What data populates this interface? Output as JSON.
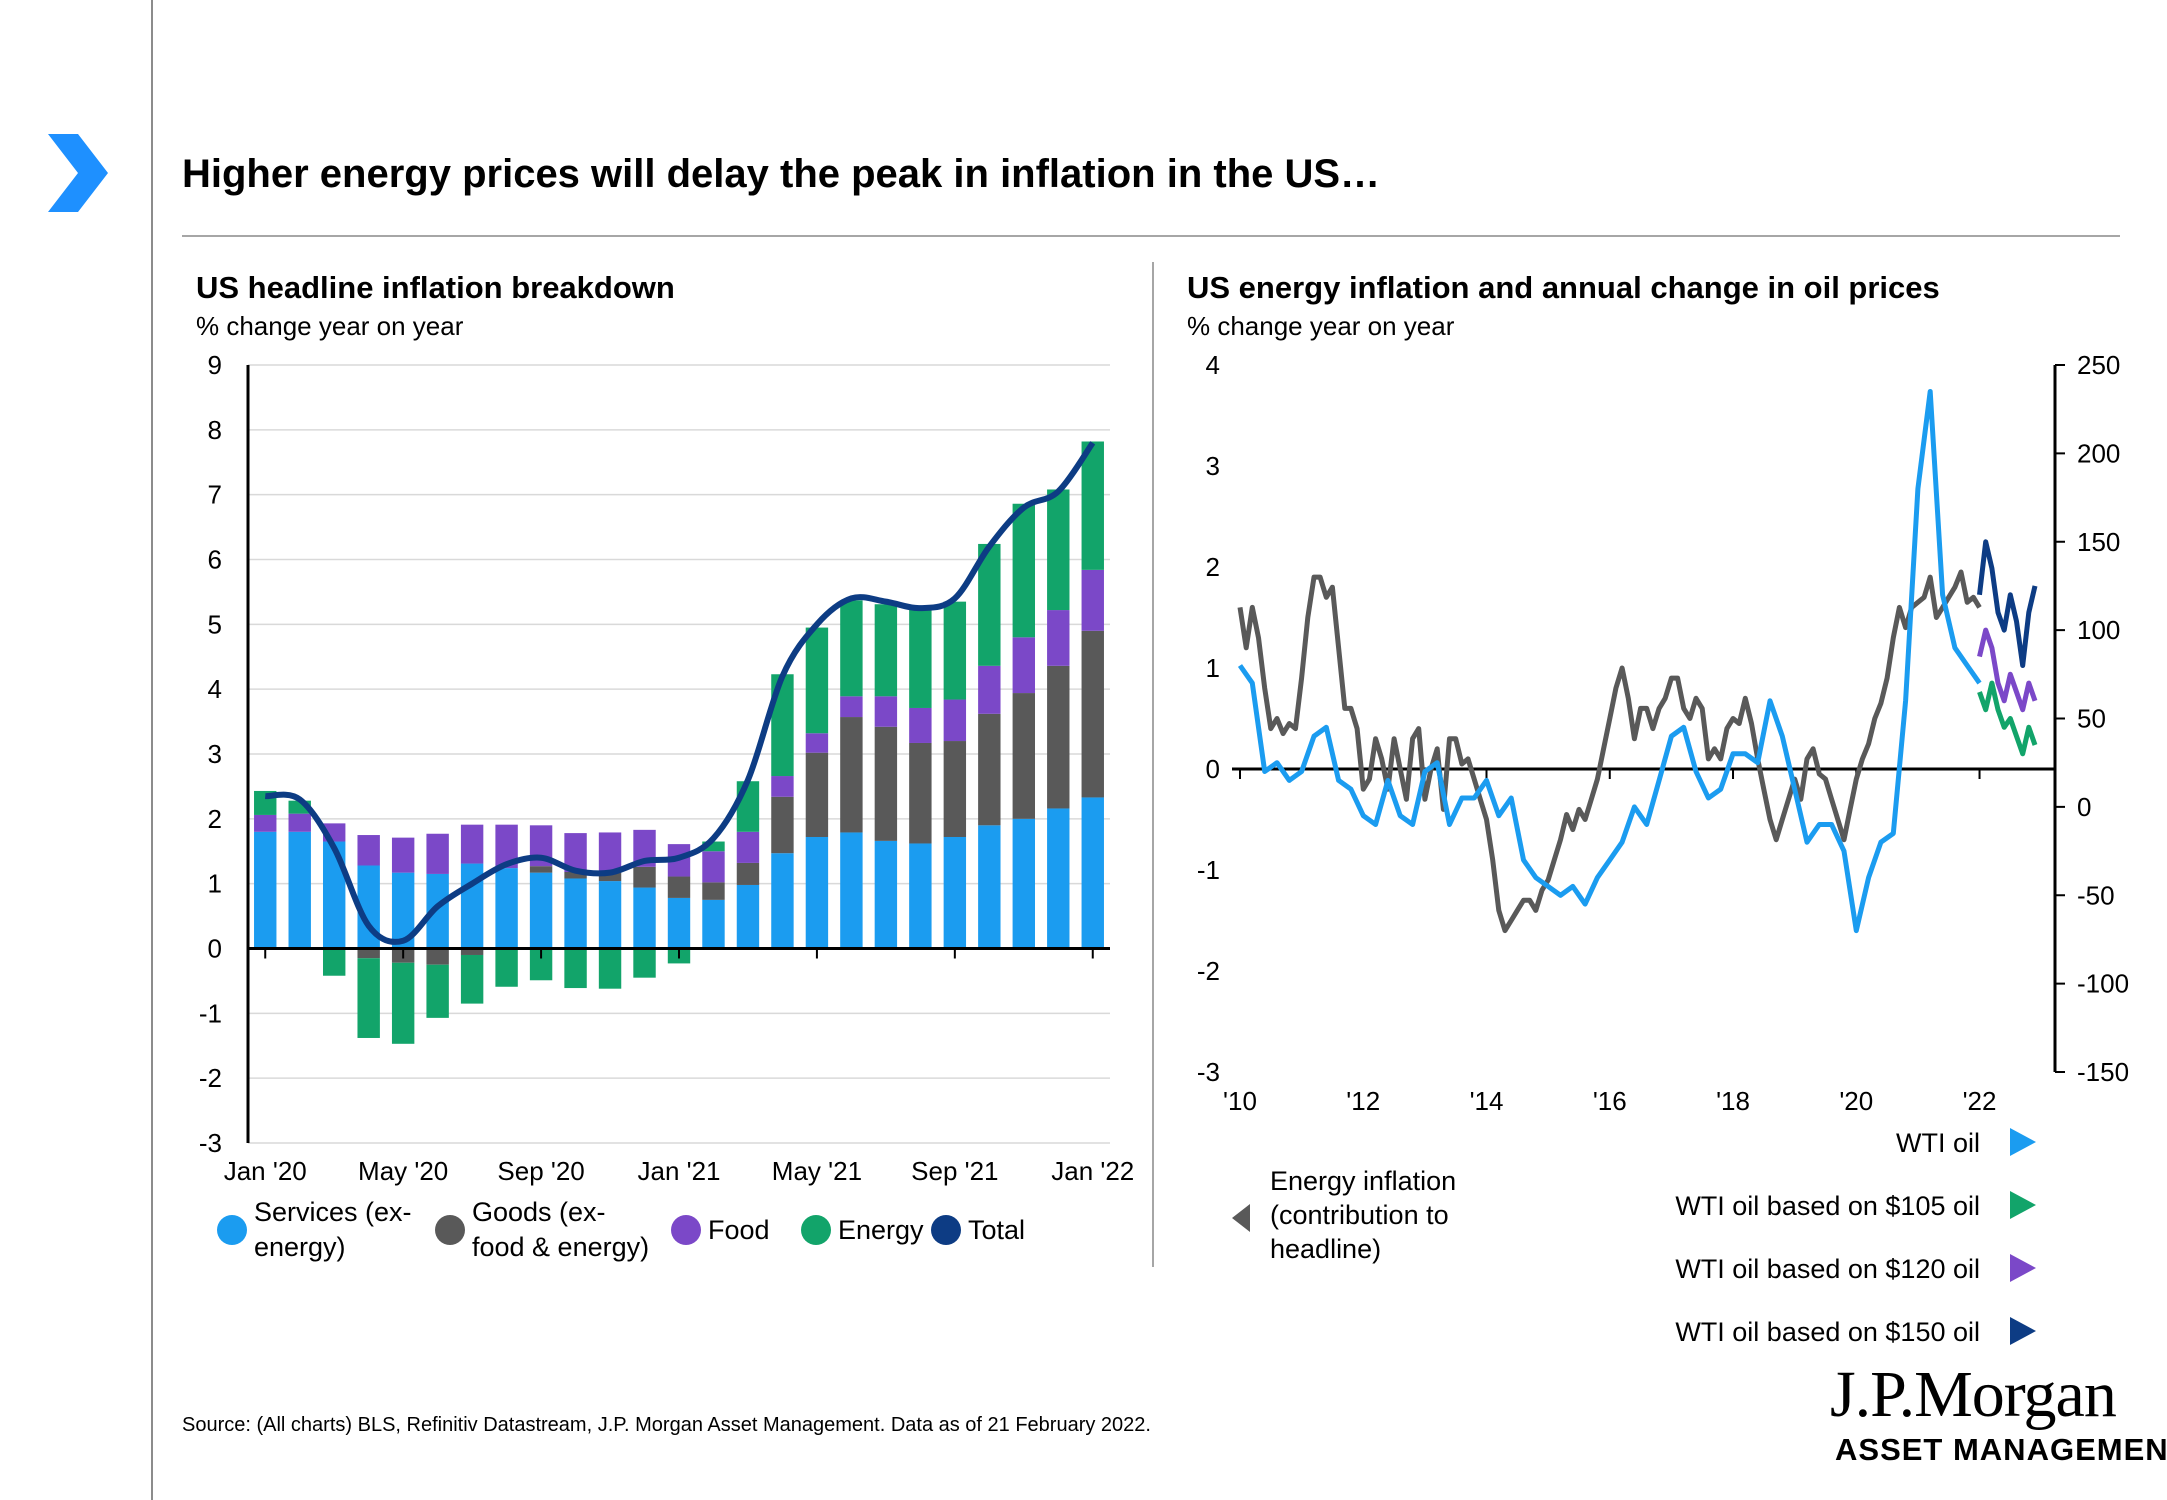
{
  "header": {
    "title": "Higher energy prices will delay the peak in inflation in the US…",
    "arrow_color": "#1e90ff"
  },
  "left_chart": {
    "title": "US headline inflation breakdown",
    "subtitle": "% change year on year"
  },
  "right_chart": {
    "title": "US energy inflation and annual change in oil prices",
    "subtitle": "% change year on year"
  },
  "source": "Source: (All charts) BLS, Refinitiv Datastream, J.P. Morgan Asset Management. Data as of 21 February 2022.",
  "logo": {
    "name": "J.P.Morgan",
    "sub": "ASSET MANAGEMENT"
  },
  "chart_data": [
    {
      "type": "bar",
      "stacked": true,
      "title": "US headline inflation breakdown",
      "ylabel": "% change year on year",
      "ylim": [
        -3,
        9
      ],
      "yticks": [
        -3,
        -2,
        -1,
        0,
        1,
        2,
        3,
        4,
        5,
        6,
        7,
        8,
        9
      ],
      "grid": true,
      "legend_position": "bottom",
      "categories": [
        "Jan '20",
        "Feb '20",
        "Mar '20",
        "Apr '20",
        "May '20",
        "Jun '20",
        "Jul '20",
        "Aug '20",
        "Sep '20",
        "Oct '20",
        "Nov '20",
        "Dec '20",
        "Jan '21",
        "Feb '21",
        "Mar '21",
        "Apr '21",
        "May '21",
        "Jun '21",
        "Jul '21",
        "Aug '21",
        "Sep '21",
        "Oct '21",
        "Nov '21",
        "Dec '21",
        "Jan '22"
      ],
      "xtick_labels": [
        "Jan '20",
        "May '20",
        "Sep '20",
        "Jan '21",
        "May '21",
        "Sep '21",
        "Jan '22"
      ],
      "series": [
        {
          "name": "Services (ex-energy)",
          "color": "#1b9cf0",
          "values": [
            1.8,
            1.8,
            1.65,
            1.28,
            1.17,
            1.15,
            1.31,
            1.24,
            1.17,
            1.08,
            1.04,
            0.94,
            0.78,
            0.75,
            0.98,
            1.47,
            1.72,
            1.79,
            1.66,
            1.62,
            1.72,
            1.9,
            2.0,
            2.16,
            2.33
          ]
        },
        {
          "name": "Goods (ex-food & energy)",
          "color": "#595959",
          "values": [
            0,
            0,
            0,
            -0.15,
            -0.22,
            -0.25,
            -0.1,
            -0.02,
            0.1,
            0.1,
            0.15,
            0.32,
            0.33,
            0.27,
            0.34,
            0.87,
            1.3,
            1.78,
            1.76,
            1.55,
            1.48,
            1.72,
            1.94,
            2.2,
            2.57
          ]
        },
        {
          "name": "Food",
          "color": "#7b48c8",
          "values": [
            0.26,
            0.28,
            0.28,
            0.47,
            0.54,
            0.62,
            0.6,
            0.67,
            0.63,
            0.6,
            0.6,
            0.57,
            0.5,
            0.48,
            0.48,
            0.32,
            0.3,
            0.32,
            0.47,
            0.54,
            0.64,
            0.74,
            0.86,
            0.86,
            0.94
          ]
        },
        {
          "name": "Energy",
          "color": "#12a46a",
          "values": [
            0.37,
            0.2,
            -0.42,
            -1.23,
            -1.25,
            -0.82,
            -0.75,
            -0.57,
            -0.49,
            -0.61,
            -0.62,
            -0.45,
            -0.23,
            0.15,
            0.78,
            1.57,
            1.63,
            1.48,
            1.42,
            1.57,
            1.51,
            1.88,
            2.06,
            1.86,
            1.98
          ]
        },
        {
          "name": "Total",
          "color": "#0d3c84",
          "type": "line",
          "values": [
            2.35,
            2.3,
            1.55,
            0.35,
            0.12,
            0.65,
            1.0,
            1.3,
            1.4,
            1.2,
            1.17,
            1.35,
            1.4,
            1.7,
            2.6,
            4.2,
            5.0,
            5.4,
            5.35,
            5.25,
            5.4,
            6.2,
            6.8,
            7.05,
            7.8
          ]
        }
      ]
    },
    {
      "type": "line",
      "title": "US energy inflation and annual change in oil prices",
      "ylabel": "% change year on year",
      "ylim": [
        -3,
        4
      ],
      "y2lim": [
        -150,
        250
      ],
      "yticks": [
        -3,
        -2,
        -1,
        0,
        1,
        2,
        3,
        4
      ],
      "y2ticks": [
        -150,
        -100,
        -50,
        0,
        50,
        100,
        150,
        200,
        250
      ],
      "xlim": [
        2010,
        2022.9
      ],
      "xtick_labels": [
        "'10",
        "'12",
        "'14",
        "'16",
        "'18",
        "'20",
        "'22"
      ],
      "legend_position": "bottom",
      "series": [
        {
          "name": "Energy inflation (contribution to headline)",
          "color": "#595959",
          "axis": "left",
          "x": [
            2010,
            2010.1,
            2010.2,
            2010.3,
            2010.4,
            2010.5,
            2010.6,
            2010.7,
            2010.8,
            2010.9,
            2011,
            2011.1,
            2011.2,
            2011.3,
            2011.4,
            2011.5,
            2011.6,
            2011.7,
            2011.8,
            2011.9,
            2012,
            2012.1,
            2012.2,
            2012.3,
            2012.4,
            2012.5,
            2012.6,
            2012.7,
            2012.8,
            2012.9,
            2013,
            2013.1,
            2013.2,
            2013.3,
            2013.4,
            2013.5,
            2013.6,
            2013.7,
            2013.8,
            2013.9,
            2014,
            2014.1,
            2014.2,
            2014.3,
            2014.4,
            2014.5,
            2014.6,
            2014.7,
            2014.8,
            2014.9,
            2015,
            2015.1,
            2015.2,
            2015.3,
            2015.4,
            2015.5,
            2015.6,
            2015.7,
            2015.8,
            2015.9,
            2016,
            2016.1,
            2016.2,
            2016.3,
            2016.4,
            2016.5,
            2016.6,
            2016.7,
            2016.8,
            2016.9,
            2017,
            2017.1,
            2017.2,
            2017.3,
            2017.4,
            2017.5,
            2017.6,
            2017.7,
            2017.8,
            2017.9,
            2018,
            2018.1,
            2018.2,
            2018.3,
            2018.4,
            2018.5,
            2018.6,
            2018.7,
            2018.8,
            2018.9,
            2019,
            2019.1,
            2019.2,
            2019.3,
            2019.4,
            2019.5,
            2019.6,
            2019.7,
            2019.8,
            2019.9,
            2020,
            2020.1,
            2020.2,
            2020.3,
            2020.4,
            2020.5,
            2020.6,
            2020.7,
            2020.8,
            2020.9,
            2021,
            2021.1,
            2021.2,
            2021.3,
            2021.4,
            2021.5,
            2021.6,
            2021.7,
            2021.8,
            2021.9,
            2022
          ],
          "y": [
            1.6,
            1.2,
            1.6,
            1.3,
            0.8,
            0.4,
            0.5,
            0.35,
            0.45,
            0.4,
            0.9,
            1.5,
            1.9,
            1.9,
            1.7,
            1.8,
            1.2,
            0.6,
            0.6,
            0.4,
            -0.2,
            -0.1,
            0.3,
            0.1,
            -0.2,
            0.3,
            0,
            -0.3,
            0.3,
            0.4,
            -0.3,
            0,
            0.2,
            -0.4,
            0.3,
            0.3,
            0.05,
            0.1,
            -0.1,
            -0.3,
            -0.5,
            -0.9,
            -1.4,
            -1.6,
            -1.5,
            -1.4,
            -1.3,
            -1.3,
            -1.4,
            -1.2,
            -1.1,
            -0.9,
            -0.7,
            -0.45,
            -0.6,
            -0.4,
            -0.5,
            -0.3,
            -0.1,
            0.2,
            0.5,
            0.8,
            1.0,
            0.7,
            0.3,
            0.6,
            0.6,
            0.4,
            0.6,
            0.7,
            0.9,
            0.9,
            0.6,
            0.5,
            0.7,
            0.6,
            0.1,
            0.2,
            0.1,
            0.4,
            0.5,
            0.45,
            0.7,
            0.45,
            0.1,
            -0.2,
            -0.5,
            -0.7,
            -0.5,
            -0.3,
            -0.1,
            -0.3,
            0.1,
            0.2,
            -0.05,
            -0.1,
            -0.3,
            -0.5,
            -0.7,
            -0.4,
            -0.1,
            0.1,
            0.25,
            0.5,
            0.65,
            0.9,
            1.3,
            1.6,
            1.4,
            1.6,
            1.65,
            1.7,
            1.9,
            1.5,
            1.6,
            1.7,
            1.8,
            1.95,
            1.65,
            1.7,
            1.6
          ]
        },
        {
          "name": "WTI oil",
          "color": "#1b9cf0",
          "axis": "right",
          "x": [
            2010,
            2010.2,
            2010.4,
            2010.6,
            2010.8,
            2011,
            2011.2,
            2011.4,
            2011.6,
            2011.8,
            2012,
            2012.2,
            2012.4,
            2012.6,
            2012.8,
            2013,
            2013.2,
            2013.4,
            2013.6,
            2013.8,
            2014,
            2014.2,
            2014.4,
            2014.6,
            2014.8,
            2015,
            2015.2,
            2015.4,
            2015.6,
            2015.8,
            2016,
            2016.2,
            2016.4,
            2016.6,
            2016.8,
            2017,
            2017.2,
            2017.4,
            2017.6,
            2017.8,
            2018,
            2018.2,
            2018.4,
            2018.6,
            2018.8,
            2019,
            2019.2,
            2019.4,
            2019.6,
            2019.8,
            2020,
            2020.2,
            2020.4,
            2020.6,
            2020.8,
            2021,
            2021.2,
            2021.4,
            2021.6,
            2021.8,
            2022
          ],
          "y": [
            80,
            70,
            20,
            25,
            15,
            20,
            40,
            45,
            15,
            10,
            -5,
            -10,
            15,
            -5,
            -10,
            20,
            25,
            -10,
            5,
            5,
            15,
            -5,
            5,
            -30,
            -40,
            -45,
            -50,
            -45,
            -55,
            -40,
            -30,
            -20,
            0,
            -10,
            15,
            40,
            45,
            20,
            5,
            10,
            30,
            30,
            25,
            60,
            40,
            10,
            -20,
            -10,
            -10,
            -25,
            -70,
            -40,
            -20,
            -15,
            60,
            180,
            235,
            120,
            90,
            80,
            70
          ]
        },
        {
          "name": "WTI oil based on $105 oil",
          "color": "#12a46a",
          "axis": "right",
          "x": [
            2022,
            2022.1,
            2022.2,
            2022.3,
            2022.4,
            2022.5,
            2022.6,
            2022.7,
            2022.8,
            2022.9
          ],
          "y": [
            65,
            55,
            70,
            55,
            45,
            50,
            40,
            30,
            45,
            35
          ]
        },
        {
          "name": "WTI oil based on $120 oil",
          "color": "#7b48c8",
          "axis": "right",
          "x": [
            2022,
            2022.1,
            2022.2,
            2022.3,
            2022.4,
            2022.5,
            2022.6,
            2022.7,
            2022.8,
            2022.9
          ],
          "y": [
            85,
            100,
            90,
            70,
            60,
            75,
            65,
            55,
            70,
            60
          ]
        },
        {
          "name": "WTI oil based on $150 oil",
          "color": "#0d3c84",
          "axis": "right",
          "x": [
            2022,
            2022.1,
            2022.2,
            2022.3,
            2022.4,
            2022.5,
            2022.6,
            2022.7,
            2022.8,
            2022.9
          ],
          "y": [
            120,
            150,
            135,
            110,
            100,
            120,
            105,
            80,
            110,
            125
          ]
        }
      ]
    }
  ]
}
